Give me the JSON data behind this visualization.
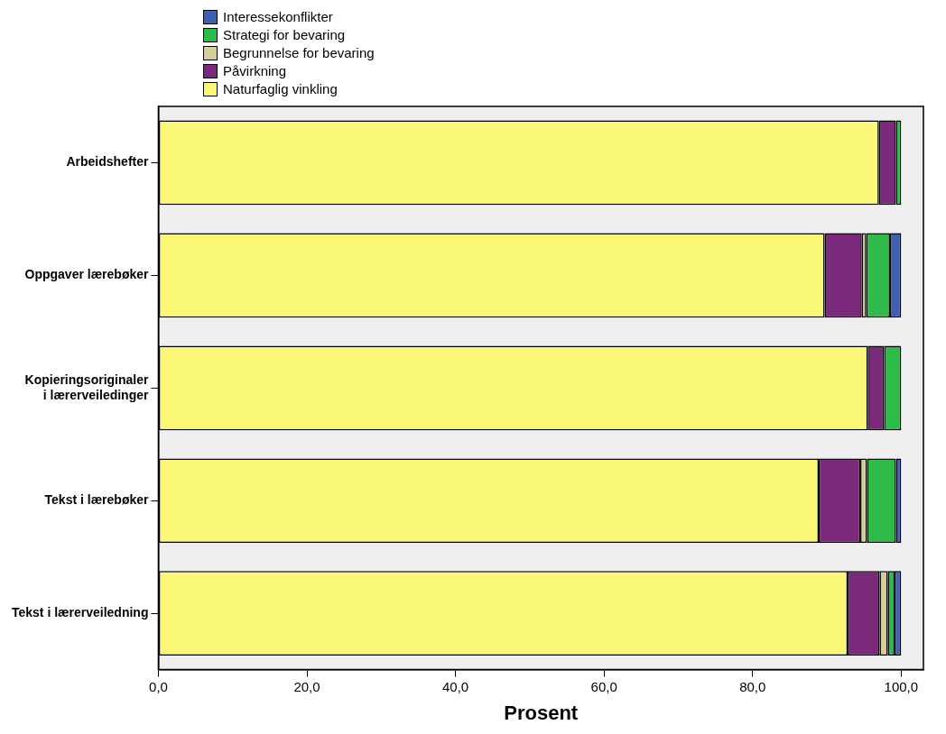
{
  "chart_data": {
    "type": "bar",
    "orientation": "horizontal",
    "stacked": true,
    "xlabel": "Prosent",
    "categories": [
      "Arbeidshefter",
      "Oppgaver lærebøker",
      "Kopieringsoriginaler\ni lærerveiledinger",
      "Tekst i lærebøker",
      "Tekst i lærerveiledning"
    ],
    "series": [
      {
        "name": "Naturfaglig vinkling",
        "color": "#fbf877",
        "values": [
          97.0,
          89.7,
          95.5,
          88.9,
          92.8
        ]
      },
      {
        "name": "Påvirkning",
        "color": "#7b2a7b",
        "values": [
          2.3,
          5.0,
          2.2,
          5.6,
          4.3
        ]
      },
      {
        "name": "Begrunnelse for bevaring",
        "color": "#d4cf98",
        "values": [
          0,
          0.6,
          0,
          0.9,
          1.1
        ]
      },
      {
        "name": "Strategi for bevaring",
        "color": "#2fbb4a",
        "values": [
          0.7,
          3.2,
          2.3,
          3.9,
          0.9
        ]
      },
      {
        "name": "Interessekonflikter",
        "color": "#3f5fb0",
        "values": [
          0,
          1.5,
          0,
          0.7,
          0.9
        ]
      }
    ],
    "xlim": [
      0,
      103
    ],
    "xticks": [
      {
        "value": 0,
        "label": "0,0"
      },
      {
        "value": 20,
        "label": "20,0"
      },
      {
        "value": 40,
        "label": "40,0"
      },
      {
        "value": 60,
        "label": "60,0"
      },
      {
        "value": 80,
        "label": "80,0"
      },
      {
        "value": 100,
        "label": "100,0"
      }
    ],
    "grid": false,
    "legend": "top left"
  }
}
